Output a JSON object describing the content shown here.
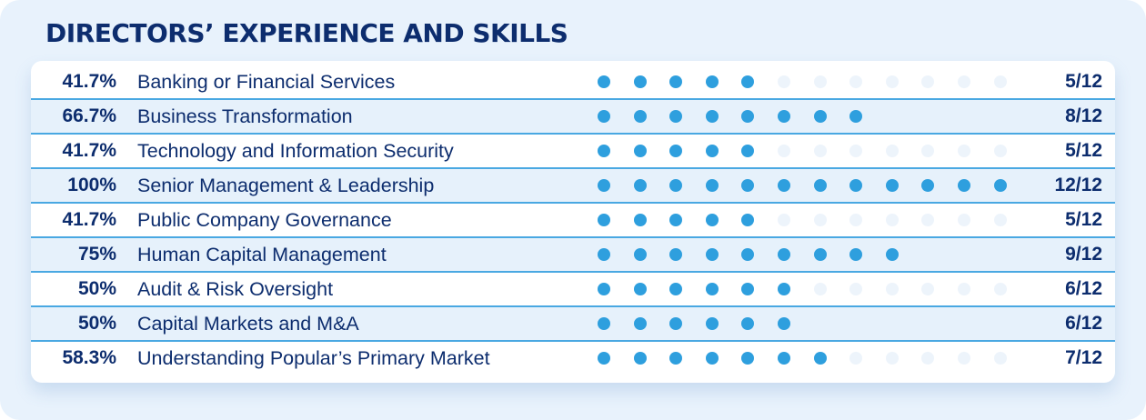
{
  "title": "DIRECTORS’ EXPERIENCE AND SKILLS",
  "colors": {
    "accent": "#2e9fde",
    "text": "#0d2d6e",
    "divider": "#49a8e2",
    "dot_off": "#edf4fb"
  },
  "chart_data": {
    "type": "table",
    "title": "DIRECTORS’ EXPERIENCE AND SKILLS",
    "total": 12,
    "rows": [
      {
        "percent": "41.7%",
        "label": "Banking or Financial Services",
        "count": 5,
        "score": "5/12"
      },
      {
        "percent": "66.7%",
        "label": "Business Transformation",
        "count": 8,
        "score": "8/12"
      },
      {
        "percent": "41.7%",
        "label": "Technology and Information Security",
        "count": 5,
        "score": "5/12"
      },
      {
        "percent": "100%",
        "label": "Senior Management & Leadership",
        "count": 12,
        "score": "12/12"
      },
      {
        "percent": "41.7%",
        "label": "Public Company Governance",
        "count": 5,
        "score": "5/12"
      },
      {
        "percent": "75%",
        "label": "Human Capital Management",
        "count": 9,
        "score": "9/12"
      },
      {
        "percent": "50%",
        "label": "Audit & Risk Oversight",
        "count": 6,
        "score": "6/12"
      },
      {
        "percent": "50%",
        "label": "Capital Markets and M&A",
        "count": 6,
        "score": "6/12"
      },
      {
        "percent": "58.3%",
        "label": "Understanding Popular’s Primary Market",
        "count": 7,
        "score": "7/12"
      }
    ]
  }
}
